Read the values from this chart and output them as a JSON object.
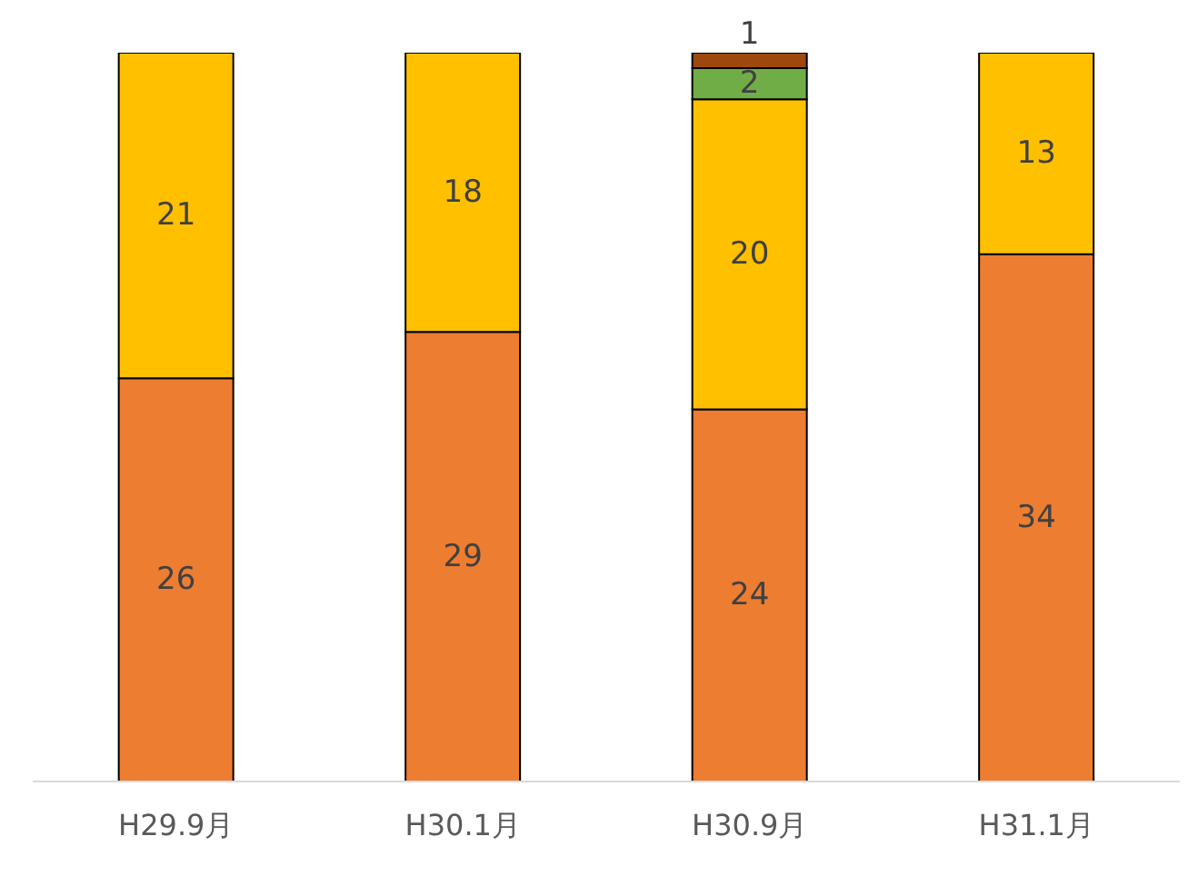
{
  "chart_data": {
    "type": "bar",
    "stacked": true,
    "categories": [
      "H29.9月",
      "H30.1月",
      "H30.9月",
      "H31.1月"
    ],
    "series": [
      {
        "color": "#ed7d31",
        "values": [
          26,
          29,
          24,
          34
        ]
      },
      {
        "color": "#ffc000",
        "values": [
          21,
          18,
          20,
          13
        ]
      },
      {
        "color": "#70ad47",
        "values": [
          null,
          null,
          2,
          null
        ]
      },
      {
        "color": "#9e480e",
        "values": [
          null,
          null,
          1,
          null
        ]
      }
    ],
    "tick_labels": "x",
    "data_labels": true,
    "legend": false
  }
}
